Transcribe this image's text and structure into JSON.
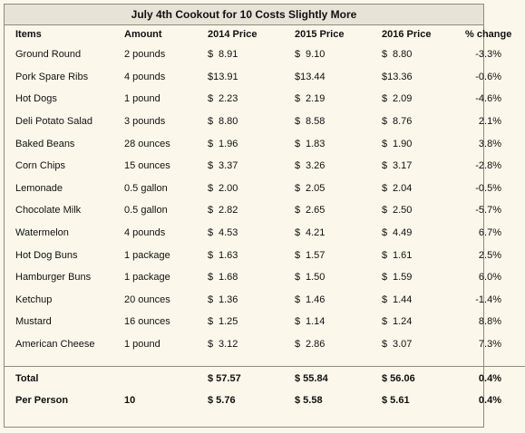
{
  "title": "July 4th Cookout for 10 Costs Slightly More",
  "headers": {
    "item": "Items",
    "amount": "Amount",
    "p2014": "2014 Price",
    "p2015": "2015 Price",
    "p2016": "2016 Price",
    "change": "% change"
  },
  "currency_symbol": "$",
  "rows": [
    {
      "item": "Ground Round",
      "amount": "2 pounds",
      "p2014": "8.91",
      "p2015": "9.10",
      "p2016": "8.80",
      "change": "-3.3%"
    },
    {
      "item": "Pork Spare Ribs",
      "amount": "4 pounds",
      "p2014": "$13.91",
      "p2015": "$13.44",
      "p2016": "$13.36",
      "change": "-0.6%"
    },
    {
      "item": "Hot Dogs",
      "amount": "1 pound",
      "p2014": "2.23",
      "p2015": "2.19",
      "p2016": "2.09",
      "change": "-4.6%"
    },
    {
      "item": "Deli Potato Salad",
      "amount": "3 pounds",
      "p2014": "8.80",
      "p2015": "8.58",
      "p2016": "8.76",
      "change": "2.1%"
    },
    {
      "item": "Baked Beans",
      "amount": "28 ounces",
      "p2014": "1.96",
      "p2015": "1.83",
      "p2016": "1.90",
      "change": "3.8%"
    },
    {
      "item": "Corn Chips",
      "amount": "15 ounces",
      "p2014": "3.37",
      "p2015": "3.26",
      "p2016": "3.17",
      "change": "-2.8%"
    },
    {
      "item": "Lemonade",
      "amount": "0.5 gallon",
      "p2014": "2.00",
      "p2015": "2.05",
      "p2016": "2.04",
      "change": "-0.5%"
    },
    {
      "item": "Chocolate Milk",
      "amount": "0.5 gallon",
      "p2014": "2.82",
      "p2015": "2.65",
      "p2016": "2.50",
      "change": "-5.7%"
    },
    {
      "item": "Watermelon",
      "amount": "4 pounds",
      "p2014": "4.53",
      "p2015": "4.21",
      "p2016": "4.49",
      "change": "6.7%"
    },
    {
      "item": "Hot Dog Buns",
      "amount": "1 package",
      "p2014": "1.63",
      "p2015": "1.57",
      "p2016": "1.61",
      "change": "2.5%"
    },
    {
      "item": "Hamburger Buns",
      "amount": "1 package",
      "p2014": "1.68",
      "p2015": "1.50",
      "p2016": "1.59",
      "change": "6.0%"
    },
    {
      "item": "Ketchup",
      "amount": "20 ounces",
      "p2014": "1.36",
      "p2015": "1.46",
      "p2016": "1.44",
      "change": "-1.4%"
    },
    {
      "item": "Mustard",
      "amount": "16 ounces",
      "p2014": "1.25",
      "p2015": "1.14",
      "p2016": "1.24",
      "change": "8.8%"
    },
    {
      "item": "American Cheese",
      "amount": "1 pound",
      "p2014": "3.12",
      "p2015": "2.86",
      "p2016": "3.07",
      "change": "7.3%"
    }
  ],
  "total": {
    "label": "Total",
    "amount": "",
    "p2014": "$ 57.57",
    "p2015": "$ 55.84",
    "p2016": "$ 56.06",
    "change": "0.4%"
  },
  "per_person": {
    "label": "Per Person",
    "amount": "10",
    "p2014": "$ 5.76",
    "p2015": "$ 5.58",
    "p2016": "$ 5.61",
    "change": "0.4%"
  }
}
